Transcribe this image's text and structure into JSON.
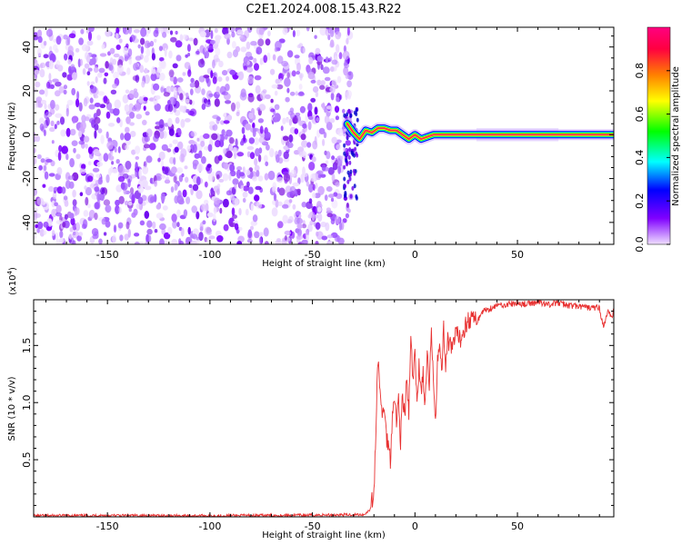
{
  "title": "C2E1.2024.008.15.43.R22",
  "chart_data": [
    {
      "type": "heatmap",
      "xlabel": "Height of straight line (km)",
      "ylabel": "Frequency (Hz)",
      "xlim": [
        -186,
        97
      ],
      "ylim": [
        -50,
        49
      ],
      "xticks": [
        -150,
        -100,
        -50,
        0,
        50
      ],
      "yticks": [
        -40,
        -20,
        0,
        20,
        40
      ],
      "colorbar": {
        "label": "Normalized spectral amplitude",
        "ticks": [
          "0.0",
          "0.2",
          "0.4",
          "0.6",
          "0.8"
        ],
        "range": [
          0,
          1
        ],
        "colormap": [
          "#f0e0ff",
          "#8000ff",
          "#0000ff",
          "#00ffff",
          "#00ff00",
          "#ffff00",
          "#ff8000",
          "#ff0040",
          "#ff0080"
        ]
      },
      "noise_region_x": [
        -186,
        -31
      ],
      "signal_trace": {
        "x": [
          -33,
          -30,
          -27,
          -24,
          -21,
          -18,
          -15,
          -12,
          -9,
          -6,
          -3,
          0,
          3,
          6,
          9,
          15,
          30,
          50,
          70,
          97
        ],
        "y": [
          5,
          1,
          -2,
          2,
          1,
          3,
          3,
          2,
          2,
          0,
          -2,
          0,
          -2,
          -1,
          0,
          0,
          0,
          0,
          0,
          0
        ]
      }
    },
    {
      "type": "line",
      "xlabel": "Height of straight line (km)",
      "ylabel": "SNR (10 * v/v)",
      "ylabel_scale": "(x10",
      "ylabel_scale_exp": "4",
      "ylabel_scale_close": ")",
      "xlim": [
        -186,
        97
      ],
      "ylim": [
        0,
        19000
      ],
      "xticks": [
        -150,
        -100,
        -50,
        0,
        50
      ],
      "yticks": [
        {
          "value": 5000,
          "label": "0.5"
        },
        {
          "value": 10000,
          "label": "1.0"
        },
        {
          "value": 15000,
          "label": "1.5"
        }
      ],
      "color": "#e83030",
      "series": [
        {
          "x": [
            -186,
            -150,
            -100,
            -50,
            -25,
            -22,
            -20,
            -19,
            -18,
            -17,
            -16,
            -15,
            -14,
            -13,
            -12,
            -11,
            -10,
            -9,
            -8,
            -7,
            -6,
            -5,
            -4,
            -3,
            -2,
            -1,
            0,
            1,
            2,
            3,
            4,
            5,
            6,
            7,
            8,
            9,
            10,
            11,
            12,
            13,
            14,
            15,
            16,
            18,
            20,
            22,
            25,
            28,
            30,
            33,
            36,
            40,
            45,
            50,
            55,
            60,
            65,
            70,
            75,
            80,
            85,
            90,
            92,
            94,
            96,
            97
          ],
          "values": [
            100,
            120,
            100,
            150,
            200,
            600,
            2000,
            8000,
            14000,
            11000,
            8500,
            10000,
            7000,
            6500,
            5000,
            9000,
            11000,
            8000,
            10500,
            6500,
            11000,
            8500,
            12000,
            9000,
            15500,
            12000,
            14000,
            10000,
            13500,
            11000,
            12500,
            9500,
            14500,
            11000,
            16000,
            12500,
            8500,
            14000,
            15000,
            12500,
            16500,
            13500,
            15500,
            14500,
            16000,
            15500,
            17000,
            17500,
            17000,
            18000,
            18200,
            18500,
            18600,
            18700,
            18600,
            18800,
            18600,
            18700,
            18500,
            18400,
            18300,
            18300,
            16500,
            18000,
            17500,
            18000
          ]
        }
      ]
    }
  ]
}
